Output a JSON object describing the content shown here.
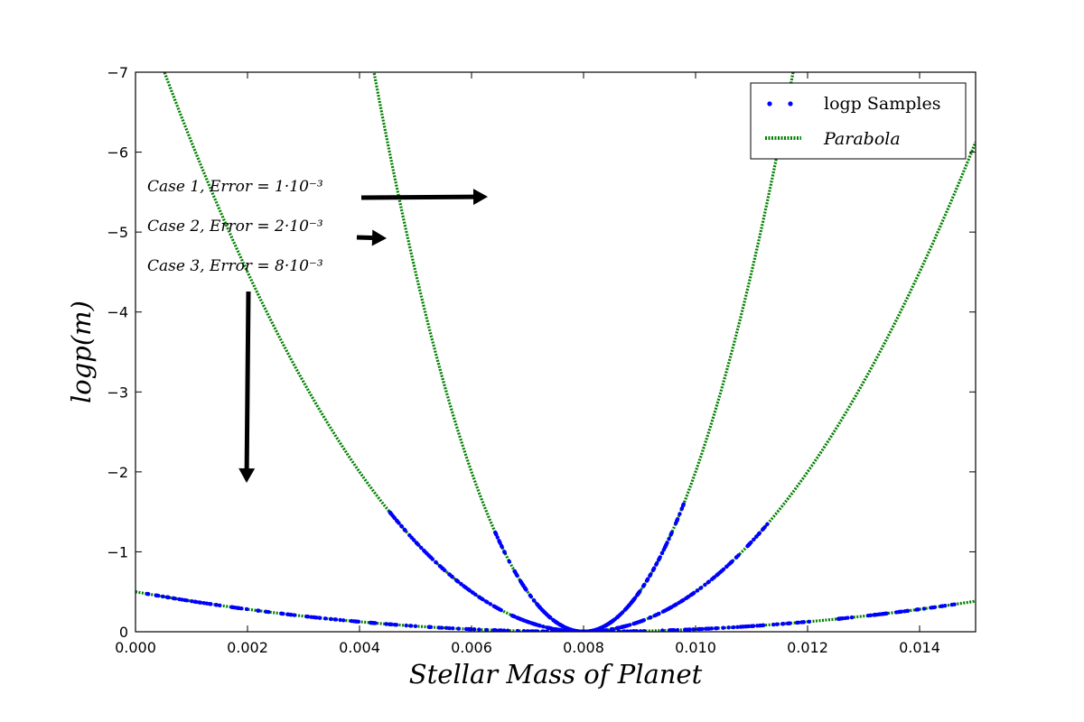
{
  "chart_data": {
    "type": "scatter",
    "title": "",
    "xlabel": "Stellar Mass of Planet",
    "ylabel": "logp(m)",
    "xlim": [
      0.0,
      0.015
    ],
    "ylim": [
      0,
      -7
    ],
    "y_axis_inverted": true,
    "x_ticks": [
      "0.000",
      "0.002",
      "0.004",
      "0.006",
      "0.008",
      "0.010",
      "0.012",
      "0.014"
    ],
    "y_ticks": [
      "0",
      "−1",
      "−2",
      "−3",
      "−4",
      "−5",
      "−6",
      "−7"
    ],
    "grid": false,
    "legend": {
      "position": "top-right",
      "entries": [
        {
          "label": "logp Samples",
          "marker": "dots",
          "color": "#0000ff"
        },
        {
          "label": "Parabola",
          "marker": "dotted-line",
          "color": "#008000"
        }
      ]
    },
    "annotations": [
      "Case 1, Error = 1·10⁻³",
      "Case 2, Error = 2·10⁻³",
      "Case 3, Error = 8·10⁻³"
    ],
    "series": [
      {
        "name": "logp Samples",
        "kind": "samples",
        "center": 0.008,
        "sigma": 0.001,
        "x_range": [
          0.0064,
          0.0098
        ],
        "color": "#0000ff"
      },
      {
        "name": "logp Samples",
        "kind": "samples",
        "center": 0.008,
        "sigma": 0.002,
        "x_range": [
          0.0045,
          0.0113
        ],
        "color": "#0000ff"
      },
      {
        "name": "logp Samples",
        "kind": "samples",
        "center": 0.008,
        "sigma": 0.008,
        "x_range": [
          0.0002,
          0.0149
        ],
        "color": "#0000ff"
      },
      {
        "name": "Parabola",
        "kind": "parabola",
        "center": 0.008,
        "sigma": 0.001,
        "color": "#008000"
      },
      {
        "name": "Parabola",
        "kind": "parabola",
        "center": 0.008,
        "sigma": 0.002,
        "color": "#008000"
      },
      {
        "name": "Parabola",
        "kind": "parabola",
        "center": 0.008,
        "sigma": 0.008,
        "color": "#008000"
      }
    ]
  }
}
